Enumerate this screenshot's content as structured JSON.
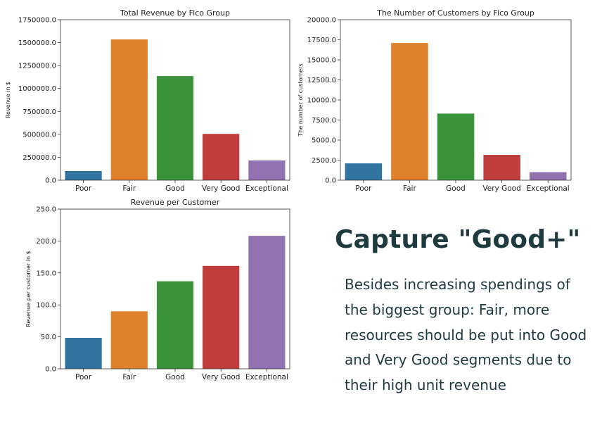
{
  "colors": {
    "poor": "#3274a1",
    "fair": "#e1812c",
    "good": "#3a923a",
    "very_good": "#c03d3e",
    "exceptional": "#9372b2",
    "text": "#1f3b40"
  },
  "chart_data": [
    {
      "type": "bar",
      "title": "Total Revenue by Fico Group",
      "xlabel": "",
      "ylabel": "Revenue in $",
      "categories": [
        "Poor",
        "Fair",
        "Good",
        "Very Good",
        "Exceptional"
      ],
      "values": [
        100000,
        1535000,
        1135000,
        505000,
        215000
      ],
      "ylim": [
        0,
        1750000
      ],
      "yticks": [
        "0.0",
        "250000.0",
        "500000.0",
        "750000.0",
        "1000000.0",
        "1250000.0",
        "1500000.0",
        "1750000.0"
      ],
      "grid": false
    },
    {
      "type": "bar",
      "title": "The Number of Customers by Fico Group",
      "xlabel": "",
      "ylabel": "The number of customers",
      "categories": [
        "Poor",
        "Fair",
        "Good",
        "Very Good",
        "Exceptional"
      ],
      "values": [
        2100,
        17100,
        8300,
        3150,
        1000
      ],
      "ylim": [
        0,
        20000
      ],
      "yticks": [
        "0.0",
        "2500.0",
        "5000.0",
        "7500.0",
        "10000.0",
        "12500.0",
        "15000.0",
        "17500.0",
        "20000.0"
      ],
      "grid": false
    },
    {
      "type": "bar",
      "title": "Revenue per Customer",
      "xlabel": "",
      "ylabel": "Revenue per customer in $",
      "categories": [
        "Poor",
        "Fair",
        "Good",
        "Very Good",
        "Exceptional"
      ],
      "values": [
        48.5,
        90,
        137,
        161,
        208
      ],
      "ylim": [
        0,
        250
      ],
      "yticks": [
        "0.0",
        "50.0",
        "100.0",
        "150.0",
        "200.0",
        "250.0"
      ],
      "grid": false
    }
  ],
  "headline": "Capture \"Good+\"",
  "body": "Besides increasing spendings of the biggest group: Fair, more resources should be put into Good and Very Good segments due to their high unit revenue"
}
